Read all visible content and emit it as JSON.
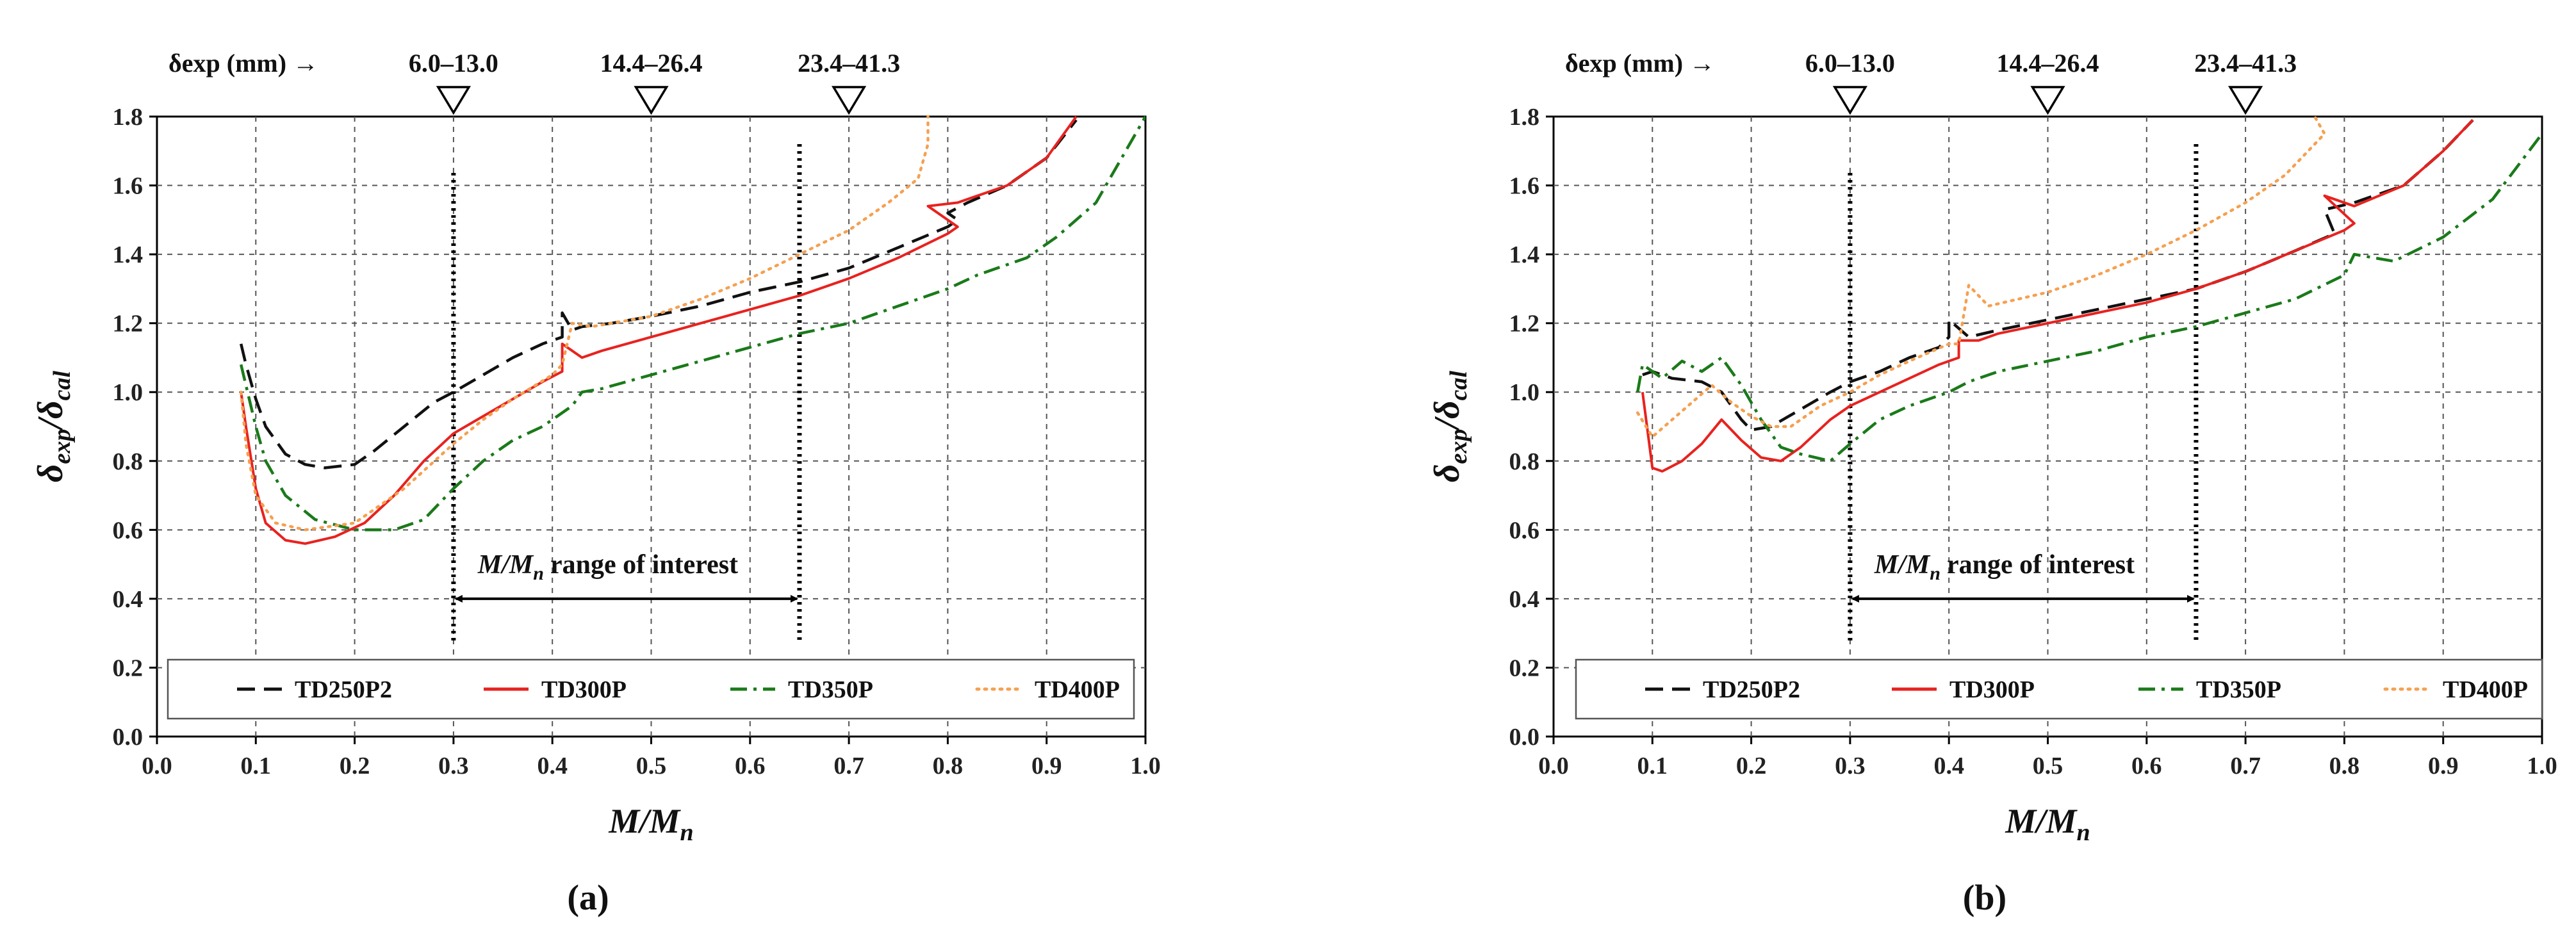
{
  "chart_data": [
    {
      "type": "line",
      "panel_label": "(a)",
      "xlabel": "M/M_n",
      "ylabel": "δ_exp/δ_cal",
      "xlim": [
        0.0,
        1.0
      ],
      "ylim": [
        0.0,
        1.8
      ],
      "x_ticks": [
        "0.0",
        "0.1",
        "0.2",
        "0.3",
        "0.4",
        "0.5",
        "0.6",
        "0.7",
        "0.8",
        "0.9",
        "1.0"
      ],
      "y_ticks": [
        "0.0",
        "0.2",
        "0.4",
        "0.6",
        "0.8",
        "1.0",
        "1.2",
        "1.4",
        "1.6",
        "1.8"
      ],
      "grid": true,
      "top_axis": {
        "label": "δexp (mm) →",
        "markers": [
          {
            "x": 0.3,
            "label": "6.0–13.0"
          },
          {
            "x": 0.5,
            "label": "14.4–26.4"
          },
          {
            "x": 0.7,
            "label": "23.4–41.3"
          }
        ]
      },
      "range_of_interest": {
        "x_start": 0.3,
        "x_end": 0.65,
        "label": "range of interest"
      },
      "legend_position": "bottom",
      "series": [
        {
          "name": "TD250P2",
          "color": "#111111",
          "dash": "dashed",
          "points": [
            [
              0.085,
              1.14
            ],
            [
              0.09,
              1.08
            ],
            [
              0.1,
              0.98
            ],
            [
              0.11,
              0.9
            ],
            [
              0.13,
              0.82
            ],
            [
              0.15,
              0.79
            ],
            [
              0.17,
              0.78
            ],
            [
              0.2,
              0.79
            ],
            [
              0.22,
              0.83
            ],
            [
              0.25,
              0.9
            ],
            [
              0.28,
              0.97
            ],
            [
              0.3,
              1.0
            ],
            [
              0.33,
              1.05
            ],
            [
              0.36,
              1.1
            ],
            [
              0.39,
              1.14
            ],
            [
              0.41,
              1.16
            ],
            [
              0.41,
              1.23
            ],
            [
              0.42,
              1.18
            ],
            [
              0.43,
              1.19
            ],
            [
              0.46,
              1.2
            ],
            [
              0.5,
              1.22
            ],
            [
              0.55,
              1.25
            ],
            [
              0.6,
              1.29
            ],
            [
              0.65,
              1.32
            ],
            [
              0.7,
              1.36
            ],
            [
              0.75,
              1.42
            ],
            [
              0.8,
              1.48
            ],
            [
              0.81,
              1.5
            ],
            [
              0.8,
              1.52
            ],
            [
              0.82,
              1.55
            ],
            [
              0.86,
              1.6
            ],
            [
              0.9,
              1.68
            ],
            [
              0.93,
              1.79
            ]
          ]
        },
        {
          "name": "TD300P",
          "color": "#e8221f",
          "dash": "solid",
          "points": [
            [
              0.085,
              1.0
            ],
            [
              0.09,
              0.9
            ],
            [
              0.1,
              0.72
            ],
            [
              0.11,
              0.62
            ],
            [
              0.13,
              0.57
            ],
            [
              0.15,
              0.56
            ],
            [
              0.18,
              0.58
            ],
            [
              0.21,
              0.62
            ],
            [
              0.24,
              0.7
            ],
            [
              0.27,
              0.8
            ],
            [
              0.3,
              0.88
            ],
            [
              0.33,
              0.93
            ],
            [
              0.36,
              0.98
            ],
            [
              0.39,
              1.03
            ],
            [
              0.41,
              1.06
            ],
            [
              0.41,
              1.14
            ],
            [
              0.43,
              1.1
            ],
            [
              0.45,
              1.12
            ],
            [
              0.5,
              1.16
            ],
            [
              0.55,
              1.2
            ],
            [
              0.6,
              1.24
            ],
            [
              0.65,
              1.28
            ],
            [
              0.7,
              1.33
            ],
            [
              0.75,
              1.39
            ],
            [
              0.8,
              1.46
            ],
            [
              0.81,
              1.48
            ],
            [
              0.78,
              1.54
            ],
            [
              0.81,
              1.55
            ],
            [
              0.86,
              1.6
            ],
            [
              0.9,
              1.68
            ],
            [
              0.93,
              1.8
            ]
          ]
        },
        {
          "name": "TD350P",
          "color": "#1a7a1a",
          "dash": "dashdot",
          "points": [
            [
              0.085,
              1.08
            ],
            [
              0.09,
              1.02
            ],
            [
              0.1,
              0.9
            ],
            [
              0.11,
              0.8
            ],
            [
              0.13,
              0.7
            ],
            [
              0.16,
              0.63
            ],
            [
              0.2,
              0.6
            ],
            [
              0.24,
              0.6
            ],
            [
              0.27,
              0.63
            ],
            [
              0.3,
              0.72
            ],
            [
              0.33,
              0.8
            ],
            [
              0.36,
              0.86
            ],
            [
              0.39,
              0.9
            ],
            [
              0.42,
              0.96
            ],
            [
              0.43,
              1.0
            ],
            [
              0.45,
              1.01
            ],
            [
              0.5,
              1.05
            ],
            [
              0.55,
              1.09
            ],
            [
              0.6,
              1.13
            ],
            [
              0.65,
              1.17
            ],
            [
              0.7,
              1.2
            ],
            [
              0.75,
              1.25
            ],
            [
              0.8,
              1.3
            ],
            [
              0.83,
              1.34
            ],
            [
              0.88,
              1.39
            ],
            [
              0.91,
              1.45
            ],
            [
              0.95,
              1.55
            ],
            [
              1.0,
              1.8
            ]
          ]
        },
        {
          "name": "TD400P",
          "color": "#f5a050",
          "dash": "dotted",
          "points": [
            [
              0.085,
              1.0
            ],
            [
              0.09,
              0.85
            ],
            [
              0.1,
              0.7
            ],
            [
              0.12,
              0.62
            ],
            [
              0.15,
              0.6
            ],
            [
              0.2,
              0.62
            ],
            [
              0.25,
              0.72
            ],
            [
              0.3,
              0.85
            ],
            [
              0.33,
              0.92
            ],
            [
              0.36,
              0.98
            ],
            [
              0.4,
              1.05
            ],
            [
              0.41,
              1.08
            ],
            [
              0.42,
              1.2
            ],
            [
              0.44,
              1.19
            ],
            [
              0.5,
              1.22
            ],
            [
              0.55,
              1.27
            ],
            [
              0.6,
              1.33
            ],
            [
              0.65,
              1.4
            ],
            [
              0.7,
              1.47
            ],
            [
              0.74,
              1.55
            ],
            [
              0.77,
              1.62
            ],
            [
              0.78,
              1.72
            ],
            [
              0.78,
              1.8
            ]
          ]
        }
      ]
    },
    {
      "type": "line",
      "panel_label": "(b)",
      "xlabel": "M/M_n",
      "ylabel": "δ_exp/δ_cal",
      "xlim": [
        0.0,
        1.0
      ],
      "ylim": [
        0.0,
        1.8
      ],
      "x_ticks": [
        "0.0",
        "0.1",
        "0.2",
        "0.3",
        "0.4",
        "0.5",
        "0.6",
        "0.7",
        "0.8",
        "0.9",
        "1.0"
      ],
      "y_ticks": [
        "0.0",
        "0.2",
        "0.4",
        "0.6",
        "0.8",
        "1.0",
        "1.2",
        "1.4",
        "1.6",
        "1.8"
      ],
      "grid": true,
      "top_axis": {
        "label": "δexp (mm) →",
        "markers": [
          {
            "x": 0.3,
            "label": "6.0–13.0"
          },
          {
            "x": 0.5,
            "label": "14.4–26.4"
          },
          {
            "x": 0.7,
            "label": "23.4–41.3"
          }
        ]
      },
      "range_of_interest": {
        "x_start": 0.3,
        "x_end": 0.65,
        "label": "range of interest"
      },
      "legend_position": "bottom",
      "series": [
        {
          "name": "TD250P2",
          "color": "#111111",
          "dash": "dashed",
          "points": [
            [
              0.09,
              1.05
            ],
            [
              0.1,
              1.06
            ],
            [
              0.12,
              1.04
            ],
            [
              0.15,
              1.03
            ],
            [
              0.17,
              1.0
            ],
            [
              0.19,
              0.92
            ],
            [
              0.2,
              0.89
            ],
            [
              0.22,
              0.9
            ],
            [
              0.25,
              0.95
            ],
            [
              0.28,
              1.0
            ],
            [
              0.3,
              1.03
            ],
            [
              0.33,
              1.06
            ],
            [
              0.36,
              1.1
            ],
            [
              0.39,
              1.13
            ],
            [
              0.4,
              1.16
            ],
            [
              0.4,
              1.21
            ],
            [
              0.42,
              1.16
            ],
            [
              0.45,
              1.18
            ],
            [
              0.5,
              1.21
            ],
            [
              0.55,
              1.24
            ],
            [
              0.6,
              1.27
            ],
            [
              0.65,
              1.3
            ],
            [
              0.7,
              1.35
            ],
            [
              0.75,
              1.41
            ],
            [
              0.79,
              1.46
            ],
            [
              0.78,
              1.53
            ],
            [
              0.81,
              1.55
            ],
            [
              0.86,
              1.6
            ],
            [
              0.9,
              1.7
            ],
            [
              0.93,
              1.79
            ]
          ]
        },
        {
          "name": "TD300P",
          "color": "#e8221f",
          "dash": "solid",
          "points": [
            [
              0.09,
              1.0
            ],
            [
              0.1,
              0.78
            ],
            [
              0.11,
              0.77
            ],
            [
              0.13,
              0.8
            ],
            [
              0.15,
              0.85
            ],
            [
              0.17,
              0.92
            ],
            [
              0.19,
              0.86
            ],
            [
              0.21,
              0.81
            ],
            [
              0.23,
              0.8
            ],
            [
              0.25,
              0.84
            ],
            [
              0.28,
              0.92
            ],
            [
              0.3,
              0.96
            ],
            [
              0.33,
              1.0
            ],
            [
              0.36,
              1.04
            ],
            [
              0.39,
              1.08
            ],
            [
              0.41,
              1.1
            ],
            [
              0.41,
              1.15
            ],
            [
              0.43,
              1.15
            ],
            [
              0.45,
              1.17
            ],
            [
              0.5,
              1.2
            ],
            [
              0.55,
              1.23
            ],
            [
              0.6,
              1.26
            ],
            [
              0.65,
              1.3
            ],
            [
              0.7,
              1.35
            ],
            [
              0.75,
              1.41
            ],
            [
              0.8,
              1.47
            ],
            [
              0.81,
              1.49
            ],
            [
              0.78,
              1.57
            ],
            [
              0.81,
              1.54
            ],
            [
              0.86,
              1.6
            ],
            [
              0.9,
              1.7
            ],
            [
              0.93,
              1.79
            ]
          ]
        },
        {
          "name": "TD350P",
          "color": "#1a7a1a",
          "dash": "dashdot",
          "points": [
            [
              0.085,
              1.0
            ],
            [
              0.09,
              1.08
            ],
            [
              0.11,
              1.04
            ],
            [
              0.13,
              1.09
            ],
            [
              0.15,
              1.06
            ],
            [
              0.17,
              1.1
            ],
            [
              0.19,
              1.02
            ],
            [
              0.21,
              0.92
            ],
            [
              0.23,
              0.84
            ],
            [
              0.25,
              0.82
            ],
            [
              0.28,
              0.8
            ],
            [
              0.3,
              0.85
            ],
            [
              0.33,
              0.92
            ],
            [
              0.36,
              0.96
            ],
            [
              0.4,
              1.0
            ],
            [
              0.42,
              1.03
            ],
            [
              0.45,
              1.06
            ],
            [
              0.5,
              1.09
            ],
            [
              0.55,
              1.12
            ],
            [
              0.6,
              1.16
            ],
            [
              0.65,
              1.19
            ],
            [
              0.7,
              1.23
            ],
            [
              0.75,
              1.27
            ],
            [
              0.8,
              1.34
            ],
            [
              0.81,
              1.4
            ],
            [
              0.85,
              1.38
            ],
            [
              0.9,
              1.45
            ],
            [
              0.95,
              1.56
            ],
            [
              1.0,
              1.75
            ]
          ]
        },
        {
          "name": "TD400P",
          "color": "#f5a050",
          "dash": "dotted",
          "points": [
            [
              0.085,
              0.94
            ],
            [
              0.1,
              0.87
            ],
            [
              0.12,
              0.92
            ],
            [
              0.14,
              0.97
            ],
            [
              0.16,
              1.02
            ],
            [
              0.18,
              0.97
            ],
            [
              0.2,
              0.93
            ],
            [
              0.22,
              0.9
            ],
            [
              0.24,
              0.9
            ],
            [
              0.27,
              0.96
            ],
            [
              0.3,
              1.0
            ],
            [
              0.33,
              1.05
            ],
            [
              0.36,
              1.09
            ],
            [
              0.4,
              1.14
            ],
            [
              0.41,
              1.14
            ],
            [
              0.42,
              1.31
            ],
            [
              0.44,
              1.25
            ],
            [
              0.5,
              1.29
            ],
            [
              0.55,
              1.34
            ],
            [
              0.6,
              1.4
            ],
            [
              0.65,
              1.47
            ],
            [
              0.7,
              1.55
            ],
            [
              0.74,
              1.63
            ],
            [
              0.76,
              1.69
            ],
            [
              0.78,
              1.75
            ],
            [
              0.77,
              1.8
            ]
          ]
        }
      ]
    }
  ]
}
